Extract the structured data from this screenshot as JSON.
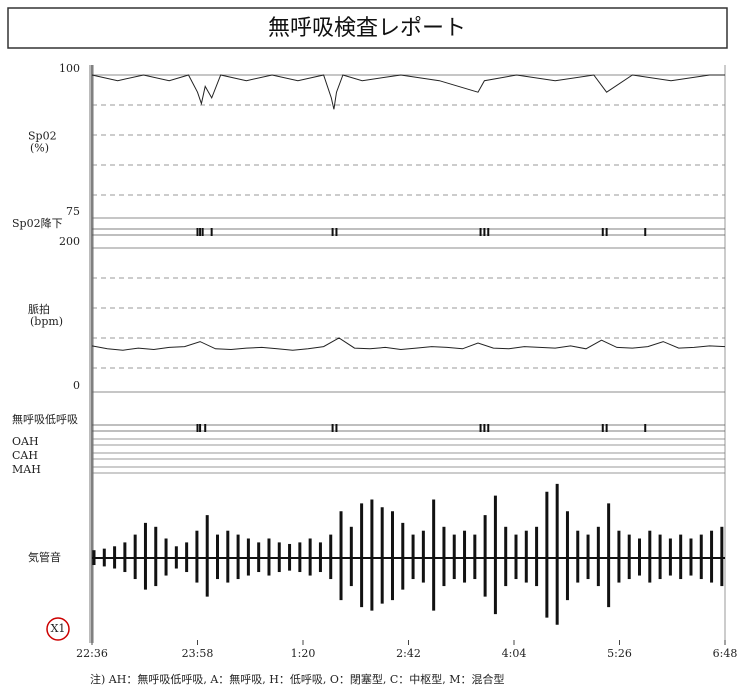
{
  "title": "無呼吸検査レポート",
  "footnote": "注) AH：無呼吸低呼吸, A：無呼吸, H：低呼吸, O：閉塞型, C：中枢型, M：混合型",
  "chart_data": [
    {
      "type": "line",
      "ylabel": "Sp02",
      "yunit": "(%)",
      "color": "#222",
      "ylim": [
        75,
        100
      ],
      "yticks": [
        75,
        100
      ],
      "xlim": [
        0,
        492
      ],
      "x": [
        0,
        20,
        40,
        60,
        75,
        82,
        85,
        88,
        93,
        100,
        120,
        140,
        160,
        180,
        186,
        188,
        190,
        195,
        210,
        240,
        270,
        300,
        305,
        330,
        360,
        390,
        400,
        420,
        450,
        480,
        492
      ],
      "values": [
        100,
        99,
        100,
        99,
        100,
        97,
        95,
        98,
        96,
        100,
        99,
        100,
        99,
        100,
        96,
        94,
        97,
        100,
        99,
        100,
        99,
        97,
        99,
        100,
        99,
        100,
        97,
        100,
        99,
        100,
        100
      ]
    },
    {
      "type": "event",
      "label": "Sp02降下",
      "xlim": [
        0,
        492
      ],
      "x": [
        82,
        84,
        86,
        93,
        187,
        190,
        302,
        305,
        308,
        397,
        400,
        430
      ]
    },
    {
      "type": "line",
      "ylabel": "脈拍",
      "yunit": "(bpm)",
      "color": "#222",
      "ylim": [
        0,
        200
      ],
      "yticks": [
        0,
        200
      ],
      "xlim": [
        0,
        492
      ],
      "x": [
        0,
        12,
        24,
        36,
        48,
        60,
        72,
        84,
        96,
        108,
        120,
        132,
        144,
        156,
        168,
        180,
        192,
        204,
        216,
        228,
        240,
        252,
        264,
        276,
        288,
        300,
        312,
        324,
        336,
        348,
        360,
        372,
        384,
        396,
        408,
        420,
        432,
        444,
        456,
        468,
        480,
        492
      ],
      "values": [
        64,
        60,
        58,
        61,
        59,
        62,
        63,
        70,
        60,
        59,
        61,
        62,
        60,
        58,
        60,
        63,
        75,
        61,
        60,
        62,
        59,
        61,
        63,
        62,
        60,
        68,
        61,
        60,
        63,
        62,
        61,
        64,
        60,
        72,
        62,
        61,
        63,
        70,
        61,
        62,
        64,
        63
      ]
    },
    {
      "type": "event",
      "label": "無呼吸低呼吸",
      "rows": [
        "OAH",
        "CAH",
        "MAH"
      ],
      "xlim": [
        0,
        492
      ],
      "x": [
        82,
        84,
        88,
        187,
        190,
        302,
        305,
        308,
        397,
        400,
        430
      ]
    },
    {
      "type": "trace",
      "label": "気管音",
      "channel": "X1",
      "ylim": [
        0,
        100
      ],
      "xlim": [
        0,
        492
      ],
      "xticks": [
        {
          "value": 0,
          "label": "22:36"
        },
        {
          "value": 82,
          "label": "23:58"
        },
        {
          "value": 164,
          "label": "1:20"
        },
        {
          "value": 246,
          "label": "2:42"
        },
        {
          "value": 328,
          "label": "4:04"
        },
        {
          "value": 410,
          "label": "5:26"
        },
        {
          "value": 492,
          "label": "6:48"
        }
      ],
      "x": [
        0,
        8,
        16,
        24,
        32,
        40,
        48,
        56,
        64,
        72,
        80,
        88,
        96,
        104,
        112,
        120,
        128,
        136,
        144,
        152,
        160,
        168,
        176,
        184,
        192,
        200,
        208,
        216,
        224,
        232,
        240,
        248,
        256,
        264,
        272,
        280,
        288,
        296,
        304,
        312,
        320,
        328,
        336,
        344,
        352,
        360,
        368,
        376,
        384,
        392,
        400,
        408,
        416,
        424,
        432,
        440,
        448,
        456,
        464,
        472,
        480,
        488
      ],
      "values": [
        10,
        12,
        15,
        20,
        30,
        45,
        40,
        25,
        15,
        20,
        35,
        55,
        30,
        35,
        30,
        25,
        20,
        25,
        20,
        18,
        20,
        25,
        20,
        30,
        60,
        40,
        70,
        75,
        65,
        60,
        45,
        30,
        35,
        75,
        40,
        30,
        35,
        30,
        55,
        80,
        40,
        30,
        35,
        40,
        85,
        95,
        60,
        35,
        30,
        40,
        70,
        35,
        30,
        25,
        35,
        30,
        25,
        30,
        25,
        30,
        35,
        40
      ]
    }
  ]
}
